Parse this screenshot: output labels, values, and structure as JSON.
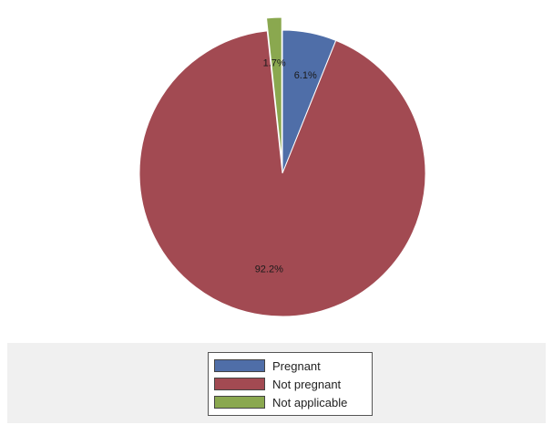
{
  "chart_data": {
    "type": "pie",
    "categories": [
      "Pregnant",
      "Not pregnant",
      "Not applicable"
    ],
    "values": [
      6.1,
      92.2,
      1.7
    ],
    "labels": [
      "6.1%",
      "92.2%",
      "1.7%"
    ],
    "exploded": [
      "Not applicable"
    ],
    "colors": [
      "#4f6ea8",
      "#a24a52",
      "#8aa84f"
    ],
    "title": "",
    "legend": "bottom"
  }
}
